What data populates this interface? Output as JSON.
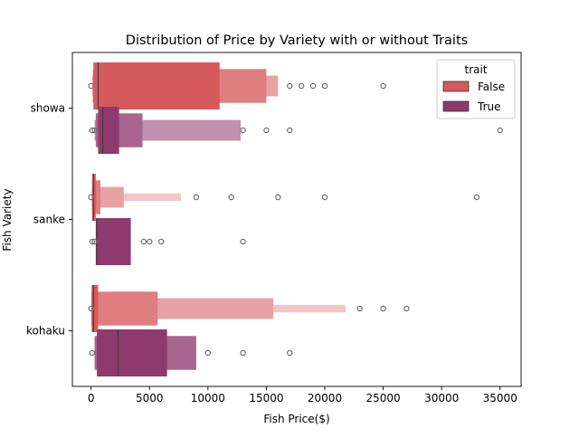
{
  "chart_data": {
    "type": "boxen",
    "title": "Distribution of Price by Variety with or without Traits",
    "xlabel": "Fish Price($)",
    "ylabel": "Fish Variety",
    "xlim": [
      -1600,
      36800
    ],
    "xticks": [
      0,
      5000,
      10000,
      15000,
      20000,
      25000,
      30000,
      35000
    ],
    "xtick_labels": [
      "0",
      "5000",
      "10000",
      "15000",
      "20000",
      "25000",
      "30000",
      "35000"
    ],
    "categories": [
      "showa",
      "sanke",
      "kohaku"
    ],
    "grid": false,
    "legend": {
      "title": "trait",
      "placement": "top-right"
    },
    "series": [
      {
        "name": "False",
        "color": "#d6595c",
        "groups": [
          {
            "category": "showa",
            "median": 600,
            "levels": [
              [
                200,
                11000
              ],
              [
                150,
                15000
              ],
              [
                100,
                16000
              ]
            ],
            "outliers": [
              0,
              17000,
              18000,
              19000,
              20000,
              25000
            ]
          },
          {
            "category": "sanke",
            "median": 200,
            "levels": [
              [
                100,
                400
              ],
              [
                80,
                800
              ],
              [
                60,
                2800
              ],
              [
                50,
                7700
              ]
            ],
            "outliers": [
              0,
              9000,
              12000,
              16000,
              20000,
              33000
            ]
          },
          {
            "category": "kohaku",
            "median": 200,
            "levels": [
              [
                50,
                600
              ],
              [
                30,
                5700
              ],
              [
                20,
                15600
              ],
              [
                10,
                21800
              ]
            ],
            "outliers": [
              0,
              23000,
              25000,
              27000
            ]
          }
        ]
      },
      {
        "name": "True",
        "color": "#8f3a6f",
        "groups": [
          {
            "category": "showa",
            "median": 1000,
            "levels": [
              [
                600,
                2400
              ],
              [
                400,
                4400
              ],
              [
                300,
                12800
              ]
            ],
            "outliers": [
              100,
              300,
              13000,
              15000,
              17000,
              35000
            ]
          },
          {
            "category": "sanke",
            "median": 500,
            "levels": [
              [
                400,
                3400
              ]
            ],
            "outliers": [
              100,
              300,
              4500,
              5000,
              6000,
              13000
            ]
          },
          {
            "category": "kohaku",
            "median": 2300,
            "levels": [
              [
                500,
                6500
              ],
              [
                300,
                9000
              ]
            ],
            "outliers": [
              100,
              10000,
              13000,
              17000
            ]
          }
        ]
      }
    ]
  }
}
